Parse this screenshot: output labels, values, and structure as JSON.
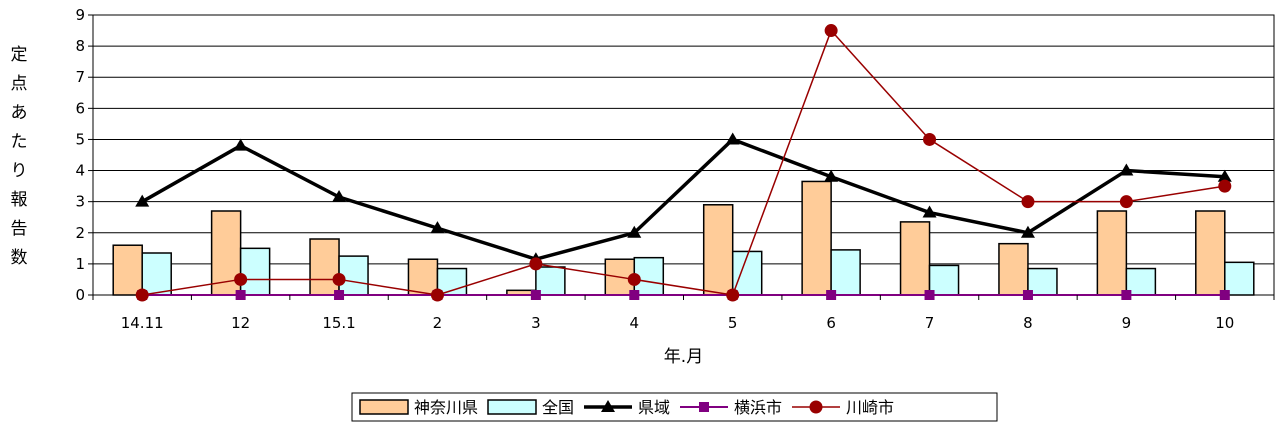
{
  "chart_data": {
    "type": "bar",
    "categories": [
      "14.11",
      "12",
      "15.1",
      "2",
      "3",
      "4",
      "5",
      "6",
      "7",
      "8",
      "9",
      "10"
    ],
    "xlabel": "年.月",
    "ylabel": "定点あたり報告数",
    "ylim": [
      0,
      9
    ],
    "yticks": [
      0,
      1,
      2,
      3,
      4,
      5,
      6,
      7,
      8,
      9
    ],
    "grid": true,
    "legend_position": "bottom",
    "bar_series": [
      {
        "name": "神奈川県",
        "color": "#FFCC99",
        "values": [
          1.6,
          2.7,
          1.8,
          1.15,
          0.15,
          1.15,
          2.9,
          3.65,
          2.35,
          1.65,
          2.7,
          2.7
        ]
      },
      {
        "name": "全国",
        "color": "#CCFFFF",
        "values": [
          1.35,
          1.5,
          1.25,
          0.85,
          0.9,
          1.2,
          1.4,
          1.45,
          0.95,
          0.85,
          0.85,
          1.05
        ]
      }
    ],
    "line_series": [
      {
        "name": "県域",
        "color": "#000000",
        "marker": "triangle",
        "values": [
          3.0,
          4.8,
          3.15,
          2.15,
          1.15,
          2.0,
          5.0,
          3.8,
          2.65,
          2.0,
          4.0,
          3.8
        ]
      },
      {
        "name": "横浜市",
        "color": "#800080",
        "marker": "square",
        "values": [
          0,
          0,
          0,
          0,
          0,
          0,
          0,
          0,
          0,
          0,
          0,
          0
        ]
      },
      {
        "name": "川崎市",
        "color": "#990000",
        "marker": "circle",
        "values": [
          0,
          0.5,
          0.5,
          0,
          1.0,
          0.5,
          0,
          8.5,
          5.0,
          3.0,
          3.0,
          3.5
        ]
      }
    ]
  }
}
